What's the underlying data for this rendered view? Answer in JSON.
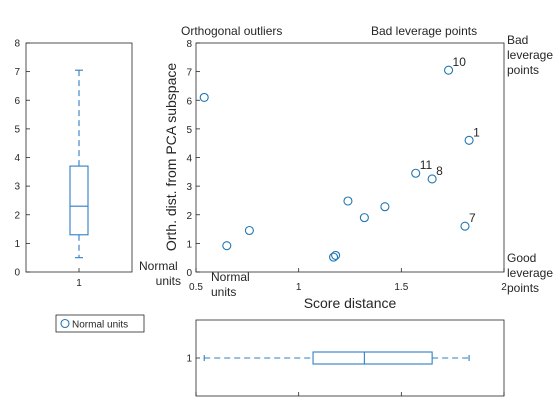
{
  "chart_data": [
    {
      "id": "left-boxplot",
      "type": "box",
      "orientation": "vertical",
      "categories": [
        "1"
      ],
      "ylim": [
        0,
        8
      ],
      "yticks": [
        0,
        1,
        2,
        3,
        4,
        5,
        6,
        7,
        8
      ],
      "box": {
        "whisker_low": 0.5,
        "q1": 1.3,
        "median": 2.3,
        "q3": 3.7,
        "whisker_high": 7.05
      }
    },
    {
      "id": "main-scatter",
      "type": "scatter",
      "xlabel": "Score distance",
      "ylabel": "Orth. dist. from PCA subspace",
      "xlim": [
        0.5,
        2
      ],
      "ylim": [
        0,
        8
      ],
      "xticks": [
        0.5,
        1,
        1.5,
        2
      ],
      "yticks": [
        0,
        1,
        2,
        3,
        4,
        5,
        6,
        7,
        8
      ],
      "points": [
        {
          "x": 0.54,
          "y": 6.1,
          "label": ""
        },
        {
          "x": 0.65,
          "y": 0.92,
          "label": ""
        },
        {
          "x": 0.76,
          "y": 1.45,
          "label": ""
        },
        {
          "x": 1.17,
          "y": 0.52,
          "label": ""
        },
        {
          "x": 1.18,
          "y": 0.58,
          "label": ""
        },
        {
          "x": 1.24,
          "y": 2.48,
          "label": ""
        },
        {
          "x": 1.32,
          "y": 1.9,
          "label": ""
        },
        {
          "x": 1.42,
          "y": 2.28,
          "label": ""
        },
        {
          "x": 1.57,
          "y": 3.45,
          "label": "11"
        },
        {
          "x": 1.65,
          "y": 3.25,
          "label": "8"
        },
        {
          "x": 1.73,
          "y": 7.05,
          "label": "10"
        },
        {
          "x": 1.81,
          "y": 1.6,
          "label": "7"
        },
        {
          "x": 1.83,
          "y": 4.6,
          "label": "1"
        }
      ],
      "region_labels": {
        "top_left": "Orthogonal outliers",
        "top_right": "Bad leverage points",
        "right_top": "Bad leverage points",
        "right_bottom": "Good leverage points",
        "left_bottom": "Normal units",
        "bottom_left": "Normal units"
      }
    },
    {
      "id": "bottom-boxplot",
      "type": "box",
      "orientation": "horizontal",
      "categories": [
        "1"
      ],
      "xlim": [
        0.5,
        2
      ],
      "box": {
        "whisker_low": 0.54,
        "q1": 1.07,
        "median": 1.32,
        "q3": 1.65,
        "whisker_high": 1.83
      }
    }
  ],
  "legend": {
    "entry": "Normal units"
  },
  "colors": {
    "series": "#1f77b4",
    "box": "#2f7fc6",
    "axis": "#262626"
  }
}
